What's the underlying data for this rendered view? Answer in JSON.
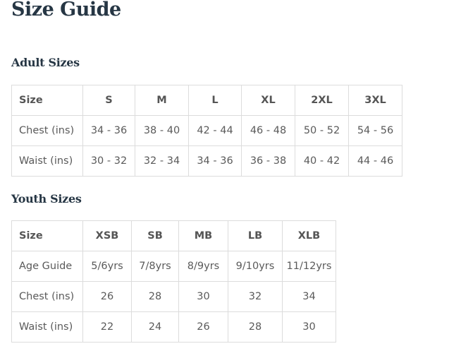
{
  "title": "Size Guide",
  "adult": {
    "heading": "Adult Sizes",
    "header": [
      "Size",
      "S",
      "M",
      "L",
      "XL",
      "2XL",
      "3XL"
    ],
    "rows": [
      [
        "Chest (ins)",
        "34 - 36",
        "38 - 40",
        "42 - 44",
        "46 - 48",
        "50 - 52",
        "54 - 56"
      ],
      [
        "Waist (ins)",
        "30 - 32",
        "32 - 34",
        "34 - 36",
        "36 - 38",
        "40 - 42",
        "44 - 46"
      ]
    ]
  },
  "youth": {
    "heading": "Youth Sizes",
    "header": [
      "Size",
      "XSB",
      "SB",
      "MB",
      "LB",
      "XLB"
    ],
    "rows": [
      [
        "Age Guide",
        "5/6yrs",
        "7/8yrs",
        "8/9yrs",
        "9/10yrs",
        "11/12yrs"
      ],
      [
        "Chest (ins)",
        "26",
        "28",
        "30",
        "32",
        "34"
      ],
      [
        "Waist (ins)",
        "22",
        "24",
        "26",
        "28",
        "30"
      ]
    ]
  }
}
